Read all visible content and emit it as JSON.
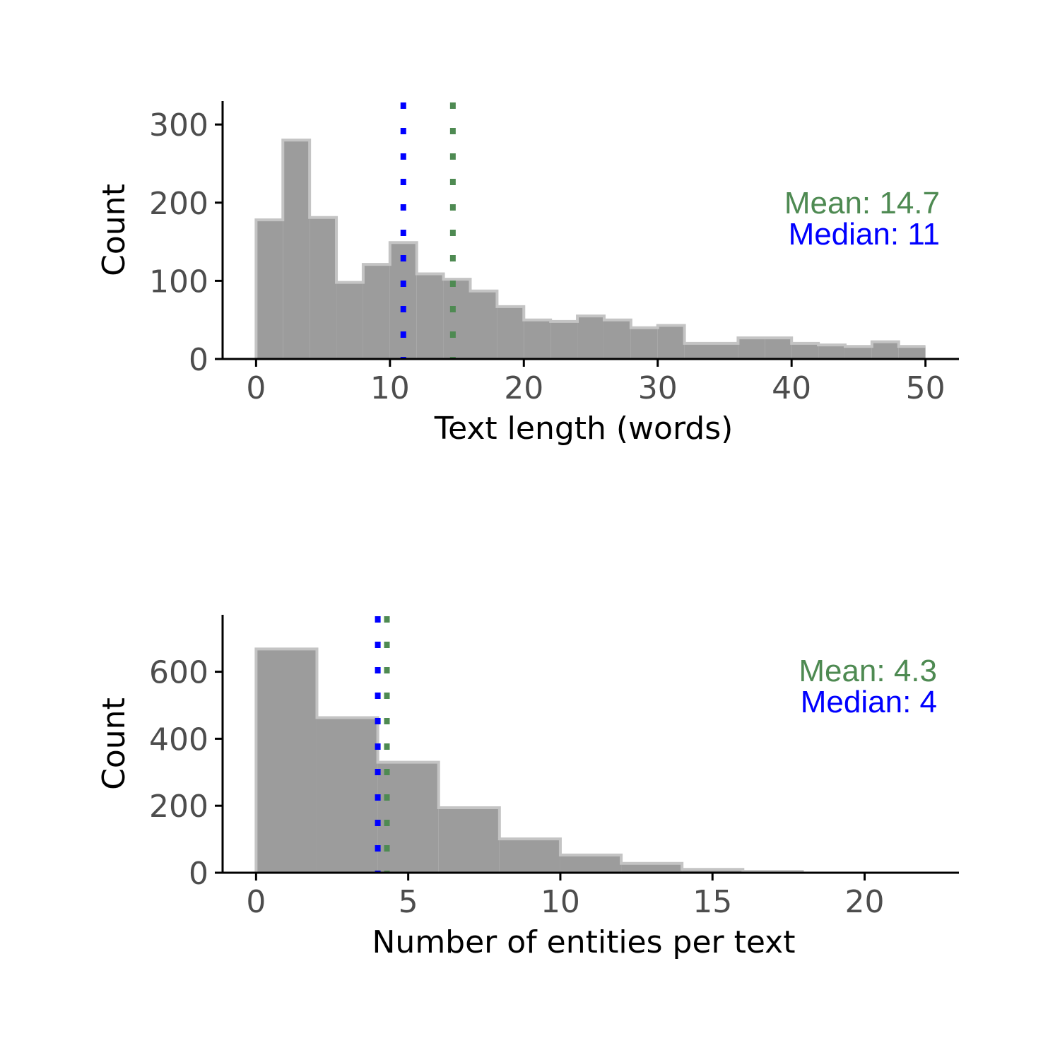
{
  "colors": {
    "bar_fill": "#9c9c9c",
    "bar_outline": "#c4c4c4",
    "axis": "#000000",
    "tick_text": "#4d4d4d",
    "mean": "#4e8a52",
    "median": "#0000ff"
  },
  "chart_data": [
    {
      "type": "bar",
      "subtype": "histogram",
      "xlabel": "Text length (words)",
      "ylabel": "Count",
      "bin_width": 2,
      "bins_start": [
        0,
        2,
        4,
        6,
        8,
        10,
        12,
        14,
        16,
        18,
        20,
        22,
        24,
        26,
        28,
        30,
        32,
        34,
        36,
        38,
        40,
        42,
        44,
        46,
        48
      ],
      "values": [
        178,
        280,
        181,
        98,
        121,
        149,
        109,
        102,
        87,
        67,
        50,
        48,
        55,
        50,
        40,
        43,
        20,
        20,
        27,
        27,
        20,
        18,
        16,
        22,
        16
      ],
      "xlim": [
        -2.5,
        52.5
      ],
      "ylim": [
        0,
        330
      ],
      "xticks": [
        0,
        10,
        20,
        30,
        40,
        50
      ],
      "yticks": [
        0,
        100,
        200,
        300
      ],
      "mean": 14.7,
      "median": 11,
      "mean_label": "Mean: 14.7",
      "median_label": "Median: 11",
      "grid": false
    },
    {
      "type": "bar",
      "subtype": "histogram",
      "xlabel": "Number of entities per text",
      "ylabel": "Count",
      "bin_width": 2,
      "bins_start": [
        0,
        2,
        4,
        6,
        8,
        10,
        12,
        14,
        16,
        18,
        20
      ],
      "values": [
        668,
        463,
        330,
        194,
        101,
        53,
        28,
        10,
        4,
        0,
        0
      ],
      "xlim": [
        -1.1,
        23.1
      ],
      "ylim": [
        0,
        770
      ],
      "xticks": [
        0,
        5,
        10,
        15,
        20
      ],
      "yticks": [
        0,
        200,
        400,
        600
      ],
      "mean": 4.3,
      "median": 4,
      "mean_label": "Mean: 4.3",
      "median_label": "Median: 4",
      "grid": false
    }
  ]
}
